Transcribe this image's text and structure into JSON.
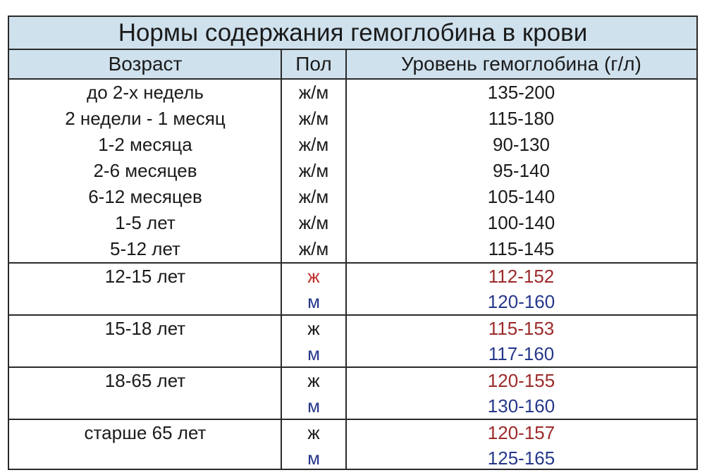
{
  "title": "Нормы содержания гемоглобина в крови",
  "headers": {
    "age": "Возраст",
    "sex": "Пол",
    "level": "Уровень гемоглобина (г/л)"
  },
  "rows_single": [
    {
      "age": "до 2-х недель",
      "sex": "ж/м",
      "level": "135-200"
    },
    {
      "age": "2 недели - 1 месяц",
      "sex": "ж/м",
      "level": "115-180"
    },
    {
      "age": "1-2 месяца",
      "sex": "ж/м",
      "level": "90-130"
    },
    {
      "age": "2-6 месяцев",
      "sex": "ж/м",
      "level": "95-140"
    },
    {
      "age": "6-12 месяцев",
      "sex": "ж/м",
      "level": "105-140"
    },
    {
      "age": "1-5 лет",
      "sex": "ж/м",
      "level": "100-140"
    },
    {
      "age": "5-12 лет",
      "sex": "ж/м",
      "level": "115-145"
    }
  ],
  "rows_double": [
    {
      "age": "12-15 лет",
      "female_sex": "ж",
      "female_level": "112-152",
      "male_sex": "м",
      "male_level": "120-160"
    },
    {
      "age": "15-18 лет",
      "female_sex": "ж",
      "female_level": "115-153",
      "male_sex": "м",
      "male_level": "117-160"
    },
    {
      "age": "18-65 лет",
      "female_sex": "ж",
      "female_level": "120-155",
      "male_sex": "м",
      "male_level": "130-160"
    },
    {
      "age": "старше 65 лет",
      "female_sex": "ж",
      "female_level": "120-157",
      "male_sex": "м",
      "male_level": "125-165"
    }
  ],
  "colors": {
    "header_bg": "#cfe1ed",
    "female": "#9c2a2a",
    "male": "#26388a",
    "border": "#2a2a2a",
    "top_band_text": "#1e4f9c"
  }
}
